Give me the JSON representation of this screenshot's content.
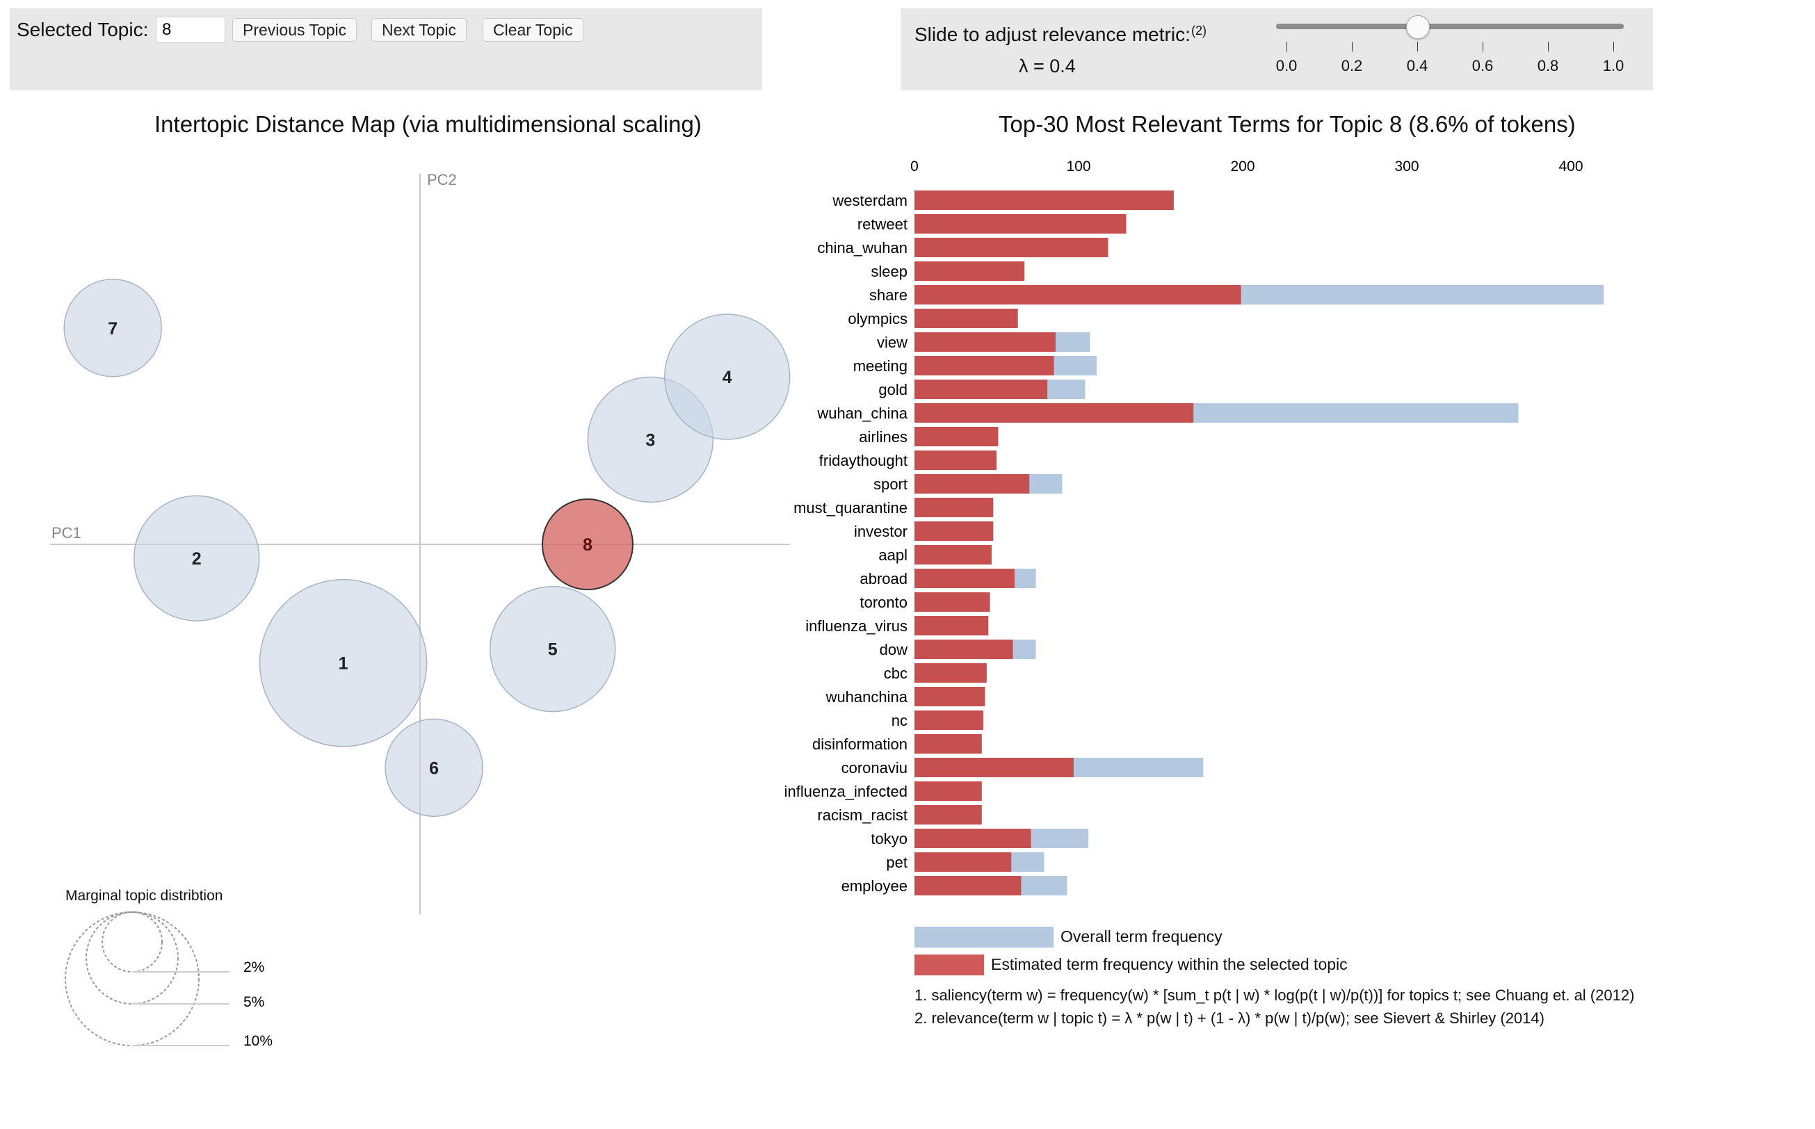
{
  "controls": {
    "selected_topic_label": "Selected Topic:",
    "selected_topic_value": "8",
    "prev_label": "Previous Topic",
    "next_label": "Next Topic",
    "clear_label": "Clear Topic"
  },
  "relevance": {
    "label": "Slide to adjust relevance metric:",
    "footnote_ref": "(2)",
    "lambda_text": "λ = 0.4",
    "lambda": 0.4,
    "ticks": [
      "0.0",
      "0.2",
      "0.4",
      "0.6",
      "0.8",
      "1.0"
    ]
  },
  "mds": {
    "title": "Intertopic Distance Map (via multidimensional scaling)",
    "x_axis": "PC1",
    "y_axis": "PC2",
    "selected": "8",
    "colors": {
      "bubble": "#c6d4e4",
      "selected": "#d4625f"
    },
    "marginal": {
      "title": "Marginal topic distribtion",
      "levels": [
        "2%",
        "5%",
        "10%"
      ]
    }
  },
  "bars": {
    "title": "Top-30 Most Relevant Terms for Topic 8 (8.6% of tokens)",
    "axis_ticks": [
      "0",
      "100",
      "200",
      "300",
      "400"
    ],
    "colors": {
      "overall": "#b4c8df",
      "topic": "#c5504f"
    },
    "legend_overall": "Overall term frequency",
    "legend_topic": "Estimated term frequency within the selected topic",
    "note1": "1. saliency(term w) = frequency(w) * [sum_t p(t | w) * log(p(t | w)/p(t))] for topics t; see Chuang et. al (2012)",
    "note2": "2. relevance(term w | topic t) = λ * p(w | t) + (1 - λ) * p(w | t)/p(w); see Sievert & Shirley (2014)"
  },
  "chart_data": [
    {
      "type": "scatter",
      "title": "Intertopic Distance Map (via multidimensional scaling)",
      "xlabel": "PC1",
      "ylabel": "PC2",
      "points": [
        {
          "label": "1",
          "x": -0.11,
          "y": -0.17,
          "size": 12
        },
        {
          "label": "2",
          "x": -0.32,
          "y": -0.02,
          "size": 9
        },
        {
          "label": "3",
          "x": 0.33,
          "y": 0.15,
          "size": 9
        },
        {
          "label": "4",
          "x": 0.44,
          "y": 0.24,
          "size": 9
        },
        {
          "label": "5",
          "x": 0.19,
          "y": -0.15,
          "size": 9
        },
        {
          "label": "6",
          "x": 0.02,
          "y": -0.32,
          "size": 7
        },
        {
          "label": "7",
          "x": -0.44,
          "y": 0.31,
          "size": 7
        },
        {
          "label": "8",
          "x": 0.24,
          "y": 0.0,
          "size": 6.5
        }
      ]
    },
    {
      "type": "bar",
      "orientation": "horizontal",
      "title": "Top-30 Most Relevant Terms for Topic 8 (8.6% of tokens)",
      "xlim": [
        0,
        450
      ],
      "categories": [
        "westerdam",
        "retweet",
        "china_wuhan",
        "sleep",
        "share",
        "olympics",
        "view",
        "meeting",
        "gold",
        "wuhan_china",
        "airlines",
        "fridaythought",
        "sport",
        "must_quarantine",
        "investor",
        "aapl",
        "abroad",
        "toronto",
        "influenza_virus",
        "dow",
        "cbc",
        "wuhanchina",
        "nc",
        "disinformation",
        "coronaviu",
        "influenza_infected",
        "racism_racist",
        "tokyo",
        "pet",
        "employee"
      ],
      "series": [
        {
          "name": "Overall term frequency",
          "values": [
            158,
            129,
            118,
            67,
            420,
            63,
            107,
            111,
            104,
            368,
            51,
            50,
            90,
            48,
            48,
            47,
            74,
            46,
            45,
            74,
            44,
            43,
            42,
            41,
            176,
            41,
            41,
            106,
            79,
            93
          ]
        },
        {
          "name": "Estimated term frequency within the selected topic",
          "values": [
            158,
            129,
            118,
            67,
            199,
            63,
            86,
            85,
            81,
            170,
            51,
            50,
            70,
            48,
            48,
            47,
            61,
            46,
            45,
            60,
            44,
            43,
            42,
            41,
            97,
            41,
            41,
            71,
            59,
            65
          ]
        }
      ]
    }
  ]
}
